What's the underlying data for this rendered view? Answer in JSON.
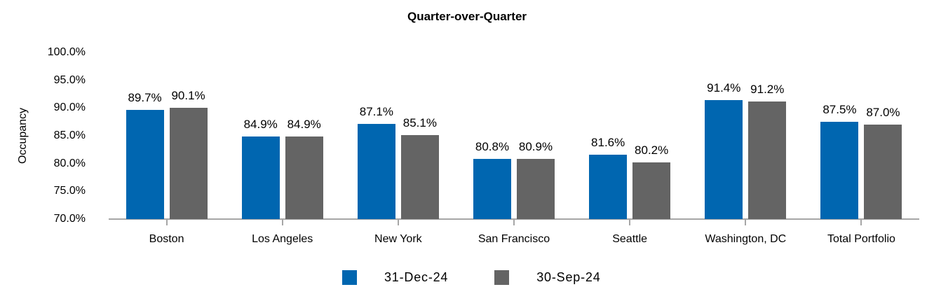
{
  "chart_data": {
    "type": "bar",
    "title": "Quarter-over-Quarter",
    "xlabel": "",
    "ylabel": "Occupancy",
    "categories": [
      "Boston",
      "Los Angeles",
      "New York",
      "San Francisco",
      "Seattle",
      "Washington, DC",
      "Total Portfolio"
    ],
    "series": [
      {
        "name": "31-Dec-24",
        "color": "#0066B0",
        "values": [
          89.7,
          84.9,
          87.1,
          80.8,
          81.6,
          91.4,
          87.5
        ]
      },
      {
        "name": "30-Sep-24",
        "color": "#646464",
        "values": [
          90.1,
          84.9,
          85.1,
          80.9,
          80.2,
          91.2,
          87.0
        ]
      }
    ],
    "data_labels": [
      [
        "89.7%",
        "84.9%",
        "87.1%",
        "80.8%",
        "81.6%",
        "91.4%",
        "87.5%"
      ],
      [
        "90.1%",
        "84.9%",
        "85.1%",
        "80.9%",
        "80.2%",
        "91.2%",
        "87.0%"
      ]
    ],
    "y_axis": {
      "min": 70,
      "max": 100,
      "step": 5,
      "tick_labels": [
        "100.0%",
        "95.0%",
        "90.0%",
        "85.0%",
        "80.0%",
        "75.0%",
        "70.0%"
      ]
    },
    "grid": false,
    "legend_position": "bottom",
    "colors": {
      "axis": "#A6A6A6",
      "text": "#000000",
      "background": "#FFFFFF"
    }
  }
}
